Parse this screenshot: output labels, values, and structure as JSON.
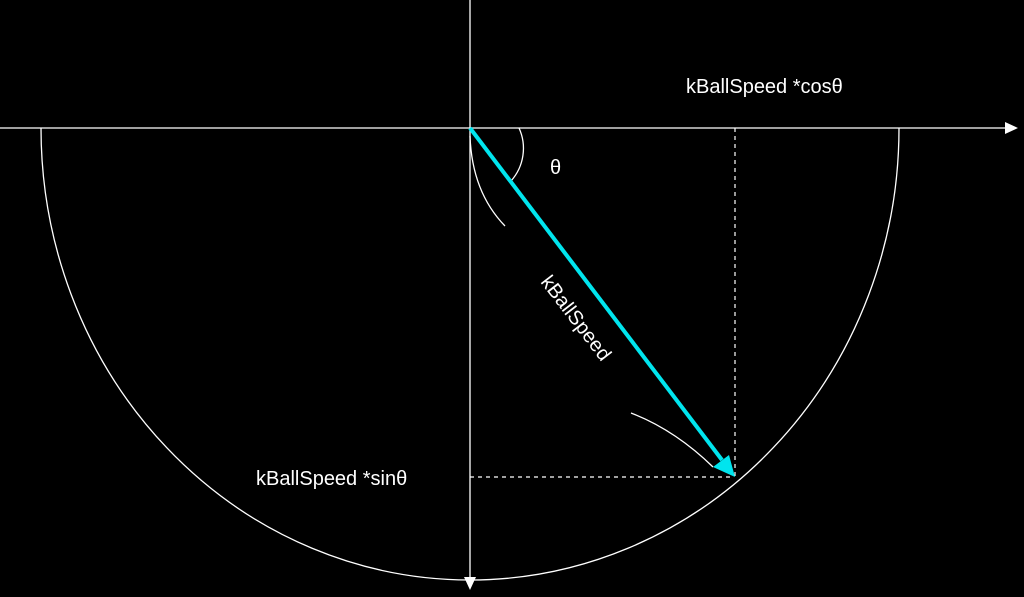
{
  "labels": {
    "cos_component": "kBallSpeed *cosθ",
    "sin_component": "kBallSpeed *sinθ",
    "vector": "kBallSpeed",
    "angle": "θ"
  },
  "colors": {
    "background": "#000000",
    "lines": "#ffffff",
    "vector": "#00e5ee"
  }
}
